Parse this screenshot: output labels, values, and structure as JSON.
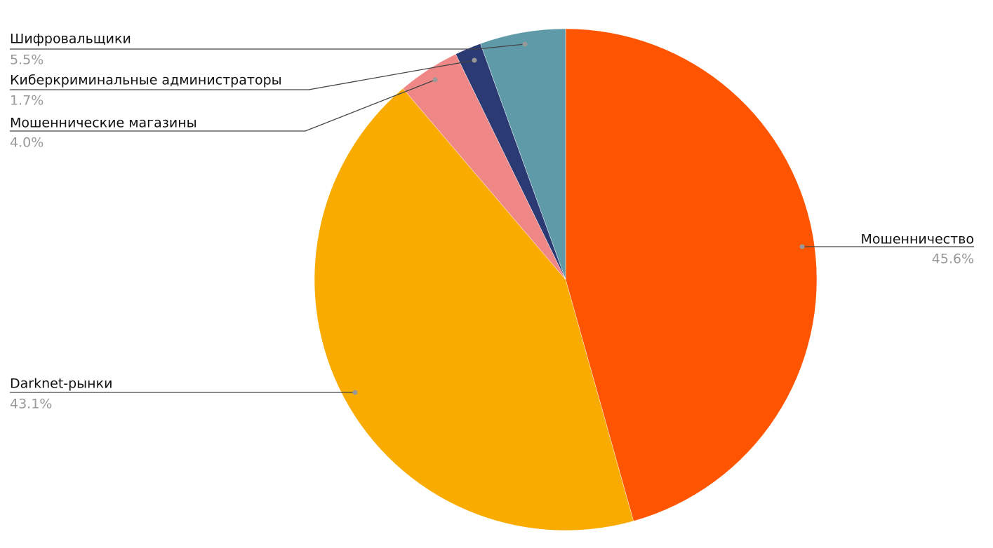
{
  "chart_data": {
    "type": "pie",
    "categories": [
      "Мошенничество",
      "Darknet-рынки",
      "Мошеннические магазины",
      "Киберкриминальные администраторы",
      "Шифровальщики"
    ],
    "values": [
      45.6,
      43.1,
      4.0,
      1.7,
      5.5
    ],
    "value_labels": [
      "45.6%",
      "43.1%",
      "4.0%",
      "1.7%",
      "5.5%"
    ],
    "colors": [
      "#ff5500",
      "#f9ab00",
      "#ef8787",
      "#2b3a73",
      "#5e9aa8"
    ]
  }
}
